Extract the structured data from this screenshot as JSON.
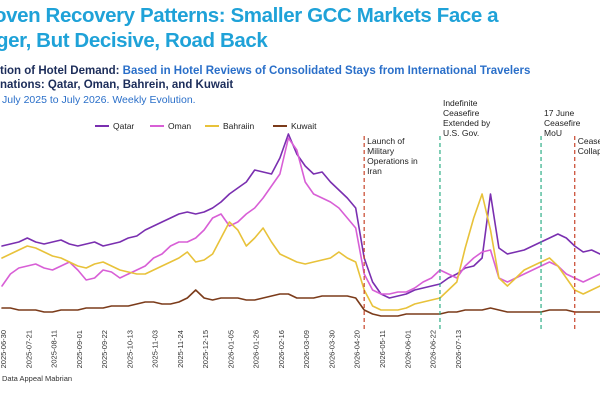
{
  "title": {
    "line1": "oven Recovery Patterns: Smaller GCC Markets Face a",
    "line2": "ger, But Decisive, Road Back"
  },
  "subtitle": {
    "prefix": "tion of Hotel Demand: ",
    "highlight": "Based in Hotel Reviews of Consolidated Stays from International Travelers",
    "line2": "nations: Qatar, Oman, Bahrein, and Kuwait",
    "line3": "July 2025 to July 2026. Weekly Evolution."
  },
  "source": "Data Appeal Mabrian",
  "colors": {
    "Qatar": "#7a2fb0",
    "Oman": "#d85fd6",
    "Bahraiin": "#e8c23a",
    "Kuwait": "#7b3b1a",
    "launch_marker": "#c8442a",
    "ceasefire_marker": "#2fae86"
  },
  "chart_data": {
    "type": "line",
    "title": "",
    "xlabel": "",
    "ylabel": "",
    "x_tick_labels": [
      "2025-06-30",
      "2025-07-21",
      "2025-08-11",
      "2025-09-01",
      "2025-09-22",
      "2025-10-13",
      "2025-11-03",
      "2025-11-24",
      "2025-12-15",
      "2026-01-05",
      "2026-01-26",
      "2026-02-16",
      "2026-03-09",
      "2026-03-30",
      "2026-04-20",
      "2026-05-11",
      "2026-06-01",
      "2026-06-22",
      "2026-07-13"
    ],
    "legend_position": "top",
    "grid": false,
    "ylim": [
      0,
      100
    ],
    "series": [
      {
        "name": "Qatar",
        "values": [
          36,
          37,
          38,
          40,
          38,
          37,
          38,
          39,
          37,
          36,
          37,
          38,
          36,
          37,
          38,
          40,
          41,
          44,
          46,
          48,
          50,
          52,
          53,
          52,
          53,
          55,
          58,
          62,
          65,
          68,
          74,
          73,
          72,
          80,
          92,
          82,
          76,
          72,
          73,
          68,
          64,
          60,
          55,
          30,
          18,
          12,
          10,
          11,
          12,
          14,
          15,
          16,
          17,
          20,
          22,
          25,
          26,
          30,
          62,
          35,
          32,
          33,
          34,
          36,
          38,
          40,
          42,
          40,
          36,
          33,
          34,
          32
        ]
      },
      {
        "name": "Oman",
        "values": [
          16,
          22,
          25,
          26,
          27,
          25,
          24,
          26,
          28,
          24,
          19,
          20,
          24,
          23,
          20,
          22,
          24,
          26,
          30,
          32,
          36,
          38,
          38,
          40,
          44,
          50,
          52,
          46,
          48,
          52,
          55,
          60,
          66,
          72,
          90,
          84,
          68,
          62,
          60,
          58,
          55,
          50,
          45,
          22,
          14,
          12,
          12,
          13,
          13,
          15,
          18,
          20,
          24,
          22,
          20,
          26,
          30,
          33,
          34,
          20,
          18,
          20,
          22,
          24,
          26,
          28,
          26,
          22,
          20,
          18,
          20,
          22
        ]
      },
      {
        "name": "Bahraiin",
        "values": [
          30,
          32,
          34,
          36,
          35,
          33,
          31,
          30,
          28,
          26,
          25,
          27,
          28,
          26,
          24,
          23,
          22,
          22,
          24,
          26,
          28,
          30,
          33,
          28,
          29,
          32,
          40,
          48,
          44,
          36,
          40,
          45,
          38,
          32,
          30,
          28,
          27,
          28,
          29,
          30,
          33,
          30,
          28,
          14,
          6,
          4,
          4,
          4,
          5,
          7,
          8,
          9,
          10,
          14,
          18,
          35,
          50,
          62,
          44,
          20,
          16,
          20,
          24,
          26,
          28,
          30,
          26,
          20,
          14,
          12,
          14,
          16
        ]
      },
      {
        "name": "Kuwait",
        "values": [
          5,
          5,
          4,
          4,
          4,
          3,
          3,
          4,
          4,
          4,
          5,
          5,
          5,
          6,
          6,
          6,
          7,
          8,
          8,
          7,
          7,
          8,
          10,
          14,
          10,
          9,
          10,
          10,
          10,
          9,
          9,
          10,
          11,
          12,
          12,
          10,
          10,
          10,
          11,
          11,
          11,
          11,
          10,
          4,
          2,
          1,
          1,
          1,
          2,
          2,
          2,
          2,
          2,
          3,
          3,
          4,
          4,
          4,
          5,
          4,
          3,
          3,
          3,
          3,
          3,
          4,
          4,
          4,
          3,
          3,
          3,
          3
        ]
      }
    ],
    "annotations": [
      {
        "label_lines": [
          "Launch of",
          "Military",
          "Operations in",
          "Iran"
        ],
        "week_index": 43,
        "kind": "launch_marker"
      },
      {
        "label_lines": [
          "Indefinite",
          "Ceasefire",
          "Extended by",
          "U.S. Gov."
        ],
        "week_index": 52,
        "kind": "ceasefire_marker"
      },
      {
        "label_lines": [
          "17 June",
          "Ceasefire",
          "MoU"
        ],
        "week_index": 64,
        "kind": "ceasefire_marker"
      },
      {
        "label_lines": [
          "Ceasefir",
          "Collaps"
        ],
        "week_index": 68,
        "kind": "launch_marker"
      }
    ]
  }
}
